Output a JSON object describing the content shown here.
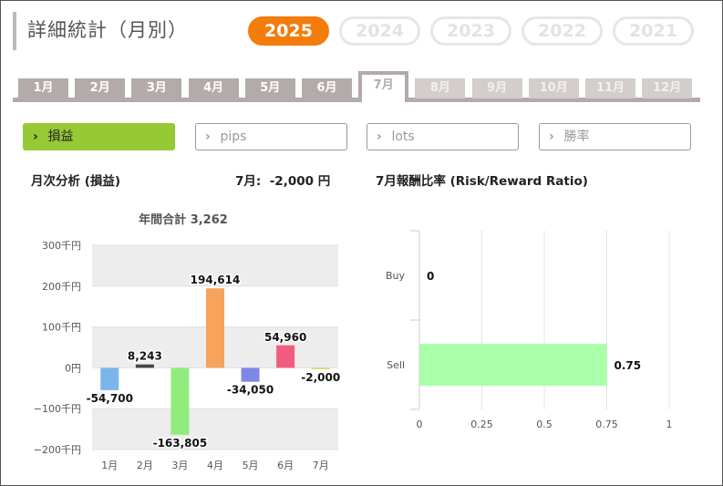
{
  "header": {
    "title": "詳細統計（月別）"
  },
  "years": [
    {
      "label": "2025",
      "active": true
    },
    {
      "label": "2024",
      "active": false
    },
    {
      "label": "2023",
      "active": false
    },
    {
      "label": "2022",
      "active": false
    },
    {
      "label": "2021",
      "active": false
    }
  ],
  "months": [
    {
      "label": "1月",
      "state": "normal"
    },
    {
      "label": "2月",
      "state": "normal"
    },
    {
      "label": "3月",
      "state": "normal"
    },
    {
      "label": "4月",
      "state": "normal"
    },
    {
      "label": "5月",
      "state": "normal"
    },
    {
      "label": "6月",
      "state": "normal"
    },
    {
      "label": "7月",
      "state": "active"
    },
    {
      "label": "8月",
      "state": "disabled"
    },
    {
      "label": "9月",
      "state": "disabled"
    },
    {
      "label": "10月",
      "state": "disabled"
    },
    {
      "label": "11月",
      "state": "disabled"
    },
    {
      "label": "12月",
      "state": "disabled"
    }
  ],
  "metrics": [
    {
      "label": "損益",
      "active": true
    },
    {
      "label": "pips",
      "active": false
    },
    {
      "label": "lots",
      "active": false
    },
    {
      "label": "勝率",
      "active": false
    }
  ],
  "monthly_section": {
    "title": "月次分析 (損益)",
    "current": "7月:  -2,000 円"
  },
  "ratio_section": {
    "title": "7月報酬比率 (Risk/Reward Ratio)"
  },
  "colors": {
    "accent_orange": "#f47c0b",
    "accent_green": "#96c935",
    "tab_gray": "#b3aba9"
  },
  "chart_data": [
    {
      "type": "bar",
      "title": "年間合計 3,262",
      "categories": [
        "1月",
        "2月",
        "3月",
        "4月",
        "5月",
        "6月",
        "7月"
      ],
      "values": [
        -54700,
        8243,
        -163805,
        194614,
        -34050,
        54960,
        -2000
      ],
      "data_labels": [
        "-54,700",
        "8,243",
        "-163,805",
        "194,614",
        "-34,050",
        "54,960",
        "-2,000"
      ],
      "bar_colors": [
        "#7cb5ec",
        "#434348",
        "#90ed7d",
        "#f7a35c",
        "#8085e9",
        "#f15c80",
        "#e4d354"
      ],
      "yticks": [
        300000,
        200000,
        100000,
        0,
        -100000,
        -200000
      ],
      "ytick_labels": [
        "300千円",
        "200千円",
        "100千円",
        "0円",
        "−100千円",
        "−200千円"
      ],
      "ylim": [
        -200000,
        300000
      ]
    },
    {
      "type": "bar",
      "orientation": "horizontal",
      "categories": [
        "Buy",
        "Sell"
      ],
      "values": [
        0,
        0.75
      ],
      "data_labels": [
        "0",
        "0.75"
      ],
      "bar_color": "#aaffaa",
      "xticks": [
        0,
        0.25,
        0.5,
        0.75,
        1
      ],
      "xtick_labels": [
        "0",
        "0.25",
        "0.5",
        "0.75",
        "1"
      ],
      "xlim": [
        0,
        1
      ]
    }
  ]
}
